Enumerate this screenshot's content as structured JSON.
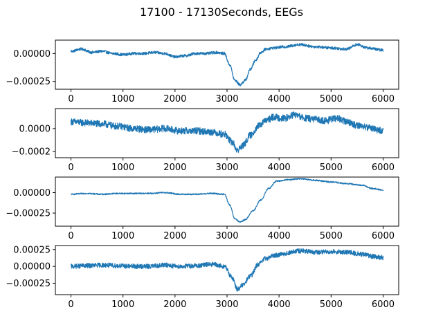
{
  "figure": {
    "title": "17100 - 17130Seconds, EEGs",
    "line_color": "#1f77b4"
  },
  "chart_data": [
    {
      "type": "line",
      "title": "",
      "xlabel": "",
      "ylabel": "",
      "grid": false,
      "xlim": [
        -300,
        6300
      ],
      "ylim": [
        -0.00032,
        0.00012
      ],
      "xticks": [
        0,
        1000,
        2000,
        3000,
        4000,
        5000,
        6000
      ],
      "xtick_labels": [
        "0",
        "1000",
        "2000",
        "3000",
        "4000",
        "5000",
        "6000"
      ],
      "yticks": [
        0.0,
        -0.00025
      ],
      "ytick_labels": [
        "0.00000",
        "−0.00025"
      ],
      "noise_amplitude": 1.2e-05,
      "series": [
        {
          "x": [
            0,
            200,
            400,
            600,
            800,
            1000,
            1200,
            1400,
            1600,
            1800,
            2000,
            2200,
            2400,
            2600,
            2800,
            2950,
            3050,
            3150,
            3250,
            3350,
            3450,
            3550,
            3650,
            3750,
            3900,
            4100,
            4400,
            4700,
            5000,
            5300,
            5500,
            5700,
            6000
          ],
          "y": [
            2e-05,
            4e-05,
            1e-05,
            2e-05,
            0.0,
            -1e-05,
            0.0,
            0.0,
            1e-05,
            0.0,
            -3e-05,
            -2e-05,
            0.0,
            0.0,
            1e-05,
            0.0,
            -0.0001,
            -0.00024,
            -0.00028,
            -0.00024,
            -0.00014,
            -6e-05,
            1e-05,
            4e-05,
            5e-05,
            6e-05,
            8e-05,
            6e-05,
            5e-05,
            4e-05,
            8e-05,
            5e-05,
            3e-05
          ]
        }
      ]
    },
    {
      "type": "line",
      "title": "",
      "xlabel": "",
      "ylabel": "",
      "grid": false,
      "xlim": [
        -300,
        6300
      ],
      "ylim": [
        -0.000255,
        0.000175
      ],
      "xticks": [
        0,
        1000,
        2000,
        3000,
        4000,
        5000,
        6000
      ],
      "xtick_labels": [
        "0",
        "1000",
        "2000",
        "3000",
        "4000",
        "5000",
        "6000"
      ],
      "yticks": [
        0.0,
        -0.0002
      ],
      "ytick_labels": [
        "0.0000",
        "−0.0002"
      ],
      "noise_amplitude": 3e-05,
      "series": [
        {
          "x": [
            0,
            300,
            600,
            900,
            1200,
            1500,
            1800,
            2100,
            2400,
            2700,
            2950,
            3100,
            3200,
            3300,
            3450,
            3600,
            3750,
            3900,
            4100,
            4300,
            4500,
            4700,
            4900,
            5100,
            5300,
            5500,
            5700,
            6000
          ],
          "y": [
            6e-05,
            5e-05,
            4e-05,
            2e-05,
            0.0,
            -1e-05,
            0.0,
            -2e-05,
            -2e-05,
            -3e-05,
            -5e-05,
            -0.00012,
            -0.00019,
            -0.00015,
            -6e-05,
            2e-05,
            7e-05,
            0.0001,
            9e-05,
            0.00012,
            9e-05,
            8e-05,
            7e-05,
            9e-05,
            6e-05,
            3e-05,
            1e-05,
            -2e-05
          ]
        }
      ]
    },
    {
      "type": "line",
      "title": "",
      "xlabel": "",
      "ylabel": "",
      "grid": false,
      "xlim": [
        -300,
        6300
      ],
      "ylim": [
        -0.00041,
        0.00019
      ],
      "xticks": [
        0,
        1000,
        2000,
        3000,
        4000,
        5000,
        6000
      ],
      "xtick_labels": [
        "0",
        "1000",
        "2000",
        "3000",
        "4000",
        "5000",
        "6000"
      ],
      "yticks": [
        0.0,
        -0.00025
      ],
      "ytick_labels": [
        "0.00000",
        "−0.00025"
      ],
      "noise_amplitude": 8e-06,
      "series": [
        {
          "x": [
            0,
            300,
            600,
            900,
            1200,
            1500,
            1800,
            2100,
            2400,
            2700,
            2950,
            3050,
            3150,
            3250,
            3350,
            3500,
            3650,
            3800,
            3950,
            4200,
            4400,
            4700,
            5000,
            5300,
            5600,
            5800,
            6000
          ],
          "y": [
            -2e-05,
            -1e-05,
            -2e-05,
            -1e-05,
            -1e-05,
            -1e-05,
            0.0,
            -2e-05,
            -2e-05,
            -1e-05,
            -2e-05,
            -0.00015,
            -0.00032,
            -0.00036,
            -0.00033,
            -0.00022,
            -9e-05,
            5e-05,
            0.00014,
            0.00016,
            0.00017,
            0.00015,
            0.00013,
            0.00011,
            9e-05,
            5e-05,
            3e-05
          ]
        }
      ]
    },
    {
      "type": "line",
      "title": "",
      "xlabel": "",
      "ylabel": "",
      "grid": false,
      "xlim": [
        -300,
        6300
      ],
      "ylim": [
        -0.00042,
        0.00031
      ],
      "xticks": [
        0,
        1000,
        2000,
        3000,
        4000,
        5000,
        6000
      ],
      "xtick_labels": [
        "0",
        "1000",
        "2000",
        "3000",
        "4000",
        "5000",
        "6000"
      ],
      "yticks": [
        0.00025,
        0.0,
        -0.00025
      ],
      "ytick_labels": [
        "0.00025",
        "0.00000",
        "−0.00025"
      ],
      "noise_amplitude": 3.5e-05,
      "series": [
        {
          "x": [
            0,
            300,
            600,
            900,
            1200,
            1500,
            1800,
            2100,
            2400,
            2700,
            2950,
            3100,
            3200,
            3300,
            3450,
            3600,
            3750,
            3900,
            4100,
            4400,
            4700,
            5000,
            5300,
            5600,
            5800,
            6000
          ],
          "y": [
            0.0,
            1e-05,
            2e-05,
            1e-05,
            0.0,
            0.0,
            2e-05,
            0.0,
            1e-05,
            3e-05,
            0.0,
            -0.00017,
            -0.00034,
            -0.00028,
            -0.00014,
            3e-05,
            0.00012,
            0.00016,
            0.00019,
            0.00023,
            0.00021,
            0.00022,
            0.00021,
            0.00018,
            0.00015,
            0.00013
          ]
        }
      ]
    }
  ]
}
